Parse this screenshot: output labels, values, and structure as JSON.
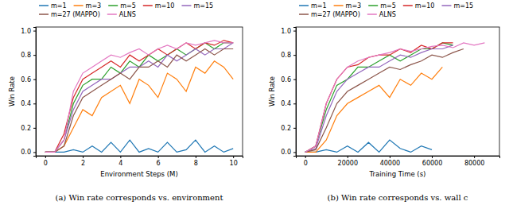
{
  "chart_data": [
    {
      "type": "line",
      "caption": "(a) Win rate corresponds vs. environment",
      "x_label": "Environment Steps (M)",
      "y_label": "Win Rate",
      "legend": "top",
      "grid": false,
      "xlim": [
        -0.5,
        10.5
      ],
      "xticks": [
        0,
        2,
        4,
        6,
        8,
        10
      ],
      "ylim": [
        -0.03,
        1.03
      ],
      "yticks": [
        {
          "value": 0,
          "label": "0.0"
        },
        0.2,
        0.4,
        0.6,
        0.8,
        {
          "value": 1,
          "label": "1.0"
        }
      ],
      "x": [
        0,
        0.5,
        1,
        1.5,
        2,
        2.5,
        3,
        3.5,
        4,
        4.5,
        5,
        5.5,
        6,
        6.5,
        7,
        7.5,
        8,
        8.5,
        9,
        9.5,
        10
      ],
      "series": [
        {
          "name": "m=1",
          "color": "#1f77b4",
          "values": [
            0,
            0,
            0,
            0.02,
            0,
            0.05,
            0,
            0.08,
            0,
            0.1,
            0,
            0.03,
            0,
            0.08,
            0,
            0.02,
            0.1,
            0,
            0.05,
            0,
            0.03
          ]
        },
        {
          "name": "m=3",
          "color": "#ff7f0e",
          "values": [
            0,
            0,
            0.05,
            0.2,
            0.35,
            0.3,
            0.45,
            0.5,
            0.55,
            0.4,
            0.6,
            0.55,
            0.45,
            0.65,
            0.6,
            0.5,
            0.7,
            0.65,
            0.75,
            0.7,
            0.6
          ]
        },
        {
          "name": "m=5",
          "color": "#2ca02c",
          "values": [
            0,
            0,
            0.1,
            0.4,
            0.55,
            0.6,
            0.6,
            0.7,
            0.65,
            0.75,
            0.7,
            0.8,
            0.75,
            0.8,
            0.85,
            0.8,
            0.85,
            0.9,
            0.85,
            0.9,
            0.9
          ]
        },
        {
          "name": "m=10",
          "color": "#d62728",
          "values": [
            0,
            0,
            0.15,
            0.45,
            0.6,
            0.65,
            0.7,
            0.75,
            0.7,
            0.8,
            0.75,
            0.8,
            0.85,
            0.8,
            0.85,
            0.9,
            0.85,
            0.9,
            0.88,
            0.92,
            0.9
          ]
        },
        {
          "name": "m=15",
          "color": "#9467bd",
          "values": [
            0,
            0,
            0.1,
            0.35,
            0.5,
            0.55,
            0.6,
            0.6,
            0.65,
            0.7,
            0.7,
            0.75,
            0.7,
            0.8,
            0.75,
            0.8,
            0.85,
            0.8,
            0.85,
            0.85,
            0.9
          ]
        },
        {
          "name": "m=27 (MAPPO)",
          "color": "#8c564b",
          "values": [
            0,
            0,
            0.05,
            0.3,
            0.45,
            0.5,
            0.55,
            0.6,
            0.65,
            0.6,
            0.7,
            0.7,
            0.75,
            0.7,
            0.8,
            0.75,
            0.8,
            0.85,
            0.8,
            0.85,
            0.85
          ]
        },
        {
          "name": "ALNS",
          "color": "#e377c2",
          "values": [
            0,
            0,
            0.1,
            0.5,
            0.65,
            0.7,
            0.75,
            0.8,
            0.78,
            0.82,
            0.85,
            0.8,
            0.85,
            0.88,
            0.85,
            0.9,
            0.88,
            0.9,
            0.92,
            0.9,
            0.9
          ]
        }
      ]
    },
    {
      "type": "line",
      "caption": "(b) Win rate corresponds vs. wall c",
      "x_label": "Training Time (s)",
      "y_label": "Win Rate",
      "legend": "top",
      "grid": false,
      "xlim": [
        -4400,
        92000
      ],
      "xticks": [
        0,
        20000,
        40000,
        60000,
        80000
      ],
      "ylim": [
        -0.03,
        1.03
      ],
      "yticks": [
        {
          "value": 0,
          "label": "0.0"
        },
        0.2,
        0.4,
        0.6,
        0.8,
        {
          "value": 1,
          "label": "1.0"
        }
      ],
      "x": [
        0,
        5000,
        10000,
        15000,
        20000,
        25000,
        30000,
        35000,
        40000,
        45000,
        50000,
        55000,
        60000,
        65000,
        70000,
        75000,
        80000,
        85000
      ],
      "series": [
        {
          "name": "m=1",
          "color": "#1f77b4",
          "values": [
            0,
            0,
            0.02,
            0,
            0.05,
            0,
            0.08,
            0,
            0.1,
            0.03,
            0,
            0.05,
            0.02,
            null,
            null,
            null,
            null,
            null
          ]
        },
        {
          "name": "m=3",
          "color": "#ff7f0e",
          "values": [
            0,
            0,
            0.1,
            0.3,
            0.4,
            0.45,
            0.5,
            0.55,
            0.45,
            0.6,
            0.55,
            0.65,
            0.6,
            0.7,
            null,
            null,
            null,
            null
          ]
        },
        {
          "name": "m=5",
          "color": "#2ca02c",
          "values": [
            0,
            0.05,
            0.35,
            0.55,
            0.6,
            0.7,
            0.7,
            0.75,
            0.8,
            0.75,
            0.8,
            0.85,
            0.85,
            0.9,
            0.88,
            null,
            null,
            null
          ]
        },
        {
          "name": "m=10",
          "color": "#d62728",
          "values": [
            0,
            0.05,
            0.4,
            0.6,
            0.7,
            0.72,
            0.78,
            0.8,
            0.8,
            0.85,
            0.82,
            0.88,
            0.85,
            0.9,
            0.9,
            null,
            null,
            null
          ]
        },
        {
          "name": "m=15",
          "color": "#9467bd",
          "values": [
            0,
            0.03,
            0.3,
            0.5,
            0.6,
            0.65,
            0.7,
            0.7,
            0.75,
            0.8,
            0.78,
            0.82,
            0.85,
            0.85,
            0.88,
            null,
            null,
            null
          ]
        },
        {
          "name": "m=27 (MAPPO)",
          "color": "#8c564b",
          "values": [
            0,
            0.02,
            0.2,
            0.4,
            0.5,
            0.55,
            0.6,
            0.65,
            0.7,
            0.68,
            0.72,
            0.75,
            0.8,
            0.78,
            0.82,
            0.85,
            null,
            null
          ]
        },
        {
          "name": "ALNS",
          "color": "#e377c2",
          "values": [
            0,
            0.05,
            0.4,
            0.6,
            0.7,
            0.75,
            0.78,
            0.8,
            0.82,
            0.85,
            0.83,
            0.85,
            0.87,
            0.88,
            0.86,
            0.9,
            0.88,
            0.9
          ]
        }
      ]
    }
  ]
}
